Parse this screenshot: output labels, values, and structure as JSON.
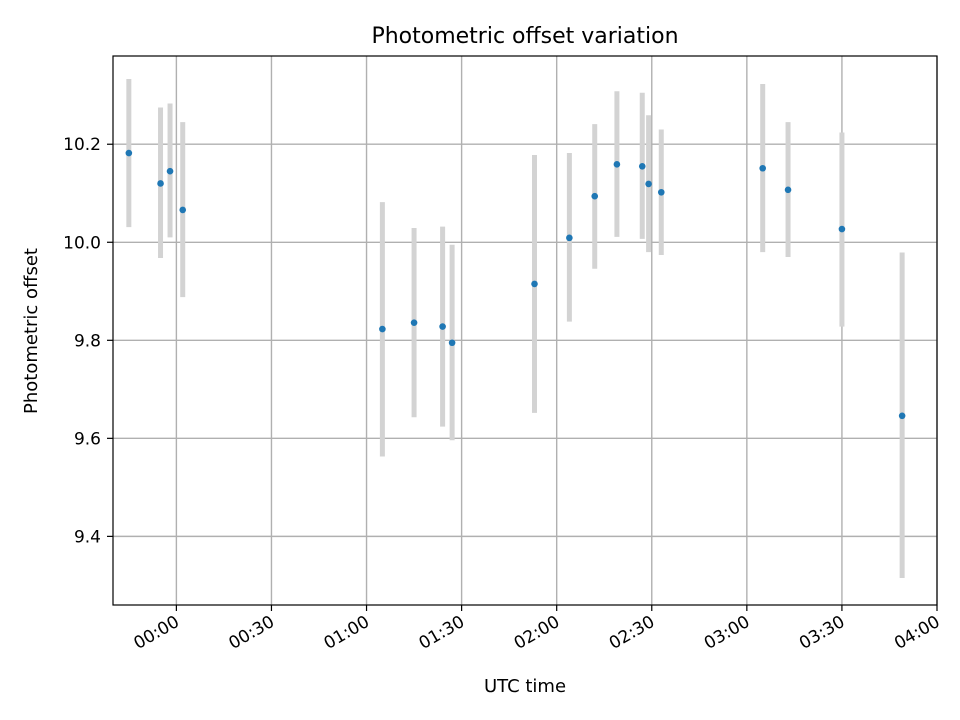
{
  "chart_data": {
    "type": "scatter",
    "title": "Photometric offset variation",
    "xlabel": "UTC time",
    "ylabel": "Photometric offset",
    "grid": true,
    "xlim": [
      "-00:20",
      "04:00"
    ],
    "ylim": [
      9.26,
      10.38
    ],
    "x_ticks": [
      {
        "t": 0,
        "label": "00:00"
      },
      {
        "t": 30,
        "label": "00:30"
      },
      {
        "t": 60,
        "label": "01:00"
      },
      {
        "t": 90,
        "label": "01:30"
      },
      {
        "t": 120,
        "label": "02:00"
      },
      {
        "t": 150,
        "label": "02:30"
      },
      {
        "t": 180,
        "label": "03:00"
      },
      {
        "t": 210,
        "label": "03:30"
      },
      {
        "t": 240,
        "label": "04:00"
      }
    ],
    "y_ticks": [
      {
        "v": 9.4,
        "label": "9.4"
      },
      {
        "v": 9.6,
        "label": "9.6"
      },
      {
        "v": 9.8,
        "label": "9.8"
      },
      {
        "v": 10.0,
        "label": "10.0"
      },
      {
        "v": 10.2,
        "label": "10.2"
      }
    ],
    "points": [
      {
        "x": "-00:15",
        "y": 10.182,
        "lo": 10.031,
        "hi": 10.333
      },
      {
        "x": "-00:05",
        "y": 10.12,
        "lo": 9.968,
        "hi": 10.275
      },
      {
        "x": "-00:02",
        "y": 10.145,
        "lo": 10.01,
        "hi": 10.283
      },
      {
        "x": "00:02",
        "y": 10.066,
        "lo": 9.888,
        "hi": 10.245
      },
      {
        "x": "01:05",
        "y": 9.823,
        "lo": 9.563,
        "hi": 10.082
      },
      {
        "x": "01:15",
        "y": 9.836,
        "lo": 9.643,
        "hi": 10.029
      },
      {
        "x": "01:24",
        "y": 9.828,
        "lo": 9.624,
        "hi": 10.032
      },
      {
        "x": "01:27",
        "y": 9.795,
        "lo": 9.596,
        "hi": 9.995
      },
      {
        "x": "01:53",
        "y": 9.915,
        "lo": 9.652,
        "hi": 10.178
      },
      {
        "x": "02:04",
        "y": 10.009,
        "lo": 9.838,
        "hi": 10.182
      },
      {
        "x": "02:12",
        "y": 10.094,
        "lo": 9.946,
        "hi": 10.241
      },
      {
        "x": "02:19",
        "y": 10.159,
        "lo": 10.011,
        "hi": 10.308
      },
      {
        "x": "02:27",
        "y": 10.155,
        "lo": 10.007,
        "hi": 10.305
      },
      {
        "x": "02:29",
        "y": 10.119,
        "lo": 9.98,
        "hi": 10.259
      },
      {
        "x": "02:33",
        "y": 10.102,
        "lo": 9.974,
        "hi": 10.23
      },
      {
        "x": "03:05",
        "y": 10.151,
        "lo": 9.98,
        "hi": 10.323
      },
      {
        "x": "03:13",
        "y": 10.107,
        "lo": 9.97,
        "hi": 10.245
      },
      {
        "x": "03:30",
        "y": 10.027,
        "lo": 9.828,
        "hi": 10.224
      },
      {
        "x": "03:49",
        "y": 9.646,
        "lo": 9.315,
        "hi": 9.979
      }
    ],
    "colors": {
      "marker": "#1f77b4",
      "errorbar": "#d3d3d3",
      "grid": "#b0b0b0",
      "axes": "#000000"
    }
  }
}
